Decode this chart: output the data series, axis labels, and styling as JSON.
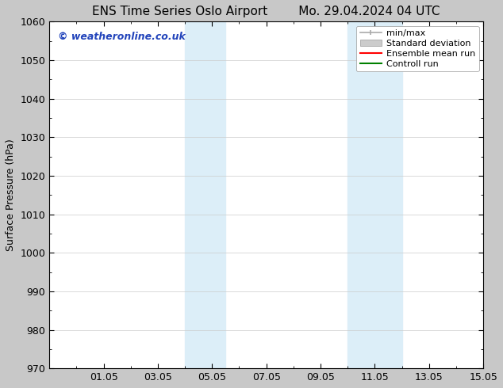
{
  "title_left": "ENS Time Series Oslo Airport",
  "title_right": "Mo. 29.04.2024 04 UTC",
  "ylabel": "Surface Pressure (hPa)",
  "ylim": [
    970,
    1060
  ],
  "yticks": [
    970,
    980,
    990,
    1000,
    1010,
    1020,
    1030,
    1040,
    1050,
    1060
  ],
  "xtick_labels": [
    "01.05",
    "03.05",
    "05.05",
    "07.05",
    "09.05",
    "11.05",
    "13.05",
    "15.05"
  ],
  "xtick_positions": [
    2,
    4,
    6,
    8,
    10,
    12,
    14,
    16
  ],
  "xlim": [
    0,
    16
  ],
  "shaded_bands": [
    {
      "x_start": 5,
      "x_end": 6.5,
      "color": "#dceef8"
    },
    {
      "x_start": 11,
      "x_end": 13,
      "color": "#dceef8"
    }
  ],
  "watermark_text": "© weatheronline.co.uk",
  "watermark_color": "#2244bb",
  "bg_color": "#c8c8c8",
  "plot_bg_color": "#ffffff",
  "spine_color": "#000000",
  "grid_color": "#cccccc",
  "font_size": 9,
  "title_font_size": 11,
  "legend_minmax_color": "#aaaaaa",
  "legend_std_color": "#cccccc",
  "legend_ens_color": "#ff0000",
  "legend_ctrl_color": "#008000"
}
